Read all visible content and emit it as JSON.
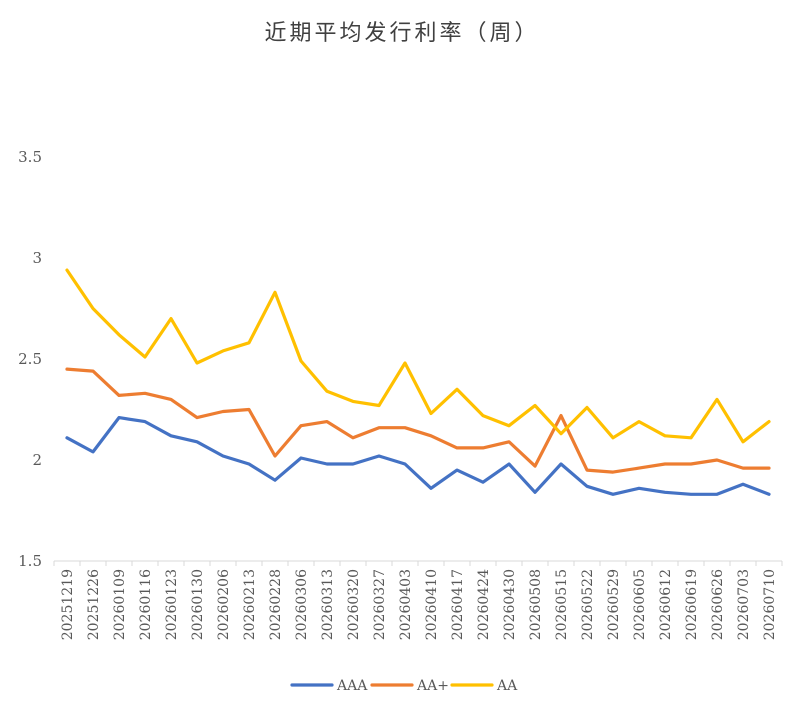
{
  "chart_data": {
    "type": "line",
    "title": "近期平均发行利率（周）",
    "xlabel": "",
    "ylabel": "",
    "ylim": [
      1.5,
      3.5
    ],
    "yticks": [
      1.5,
      2,
      2.5,
      3,
      3.5
    ],
    "ytick_labels": [
      "1.5",
      "2",
      "2.5",
      "3",
      "3.5"
    ],
    "grid": false,
    "legend_position": "bottom",
    "categories": [
      "20251219",
      "20251226",
      "20260109",
      "20260116",
      "20260123",
      "20260130",
      "20260206",
      "20260213",
      "20260228",
      "20260306",
      "20260313",
      "20260320",
      "20260327",
      "20260403",
      "20260410",
      "20260417",
      "20260424",
      "20260430",
      "20260508",
      "20260515",
      "20260522",
      "20260529",
      "20260605",
      "20260612",
      "20260619",
      "20260626",
      "20260703",
      "20260710"
    ],
    "series": [
      {
        "name": "AAA",
        "color": "#4472C4",
        "values": [
          2.11,
          2.04,
          2.21,
          2.19,
          2.12,
          2.09,
          2.02,
          1.98,
          1.9,
          2.01,
          1.98,
          1.98,
          2.02,
          1.98,
          1.86,
          1.95,
          1.89,
          1.98,
          1.84,
          1.98,
          1.87,
          1.83,
          1.86,
          1.84,
          1.83,
          1.83,
          1.88,
          1.83
        ]
      },
      {
        "name": "AA+",
        "color": "#ED7D31",
        "values": [
          2.45,
          2.44,
          2.32,
          2.33,
          2.3,
          2.21,
          2.24,
          2.25,
          2.02,
          2.17,
          2.19,
          2.11,
          2.16,
          2.16,
          2.12,
          2.06,
          2.06,
          2.09,
          1.97,
          2.22,
          1.95,
          1.94,
          1.96,
          1.98,
          1.98,
          2.0,
          1.96,
          1.96
        ]
      },
      {
        "name": "AA",
        "color": "#FFC000",
        "values": [
          2.94,
          2.75,
          2.62,
          2.51,
          2.7,
          2.48,
          2.54,
          2.58,
          2.83,
          2.49,
          2.34,
          2.29,
          2.27,
          2.48,
          2.23,
          2.35,
          2.22,
          2.17,
          2.27,
          2.13,
          2.26,
          2.11,
          2.19,
          2.12,
          2.11,
          2.3,
          2.09,
          2.19
        ]
      }
    ]
  }
}
